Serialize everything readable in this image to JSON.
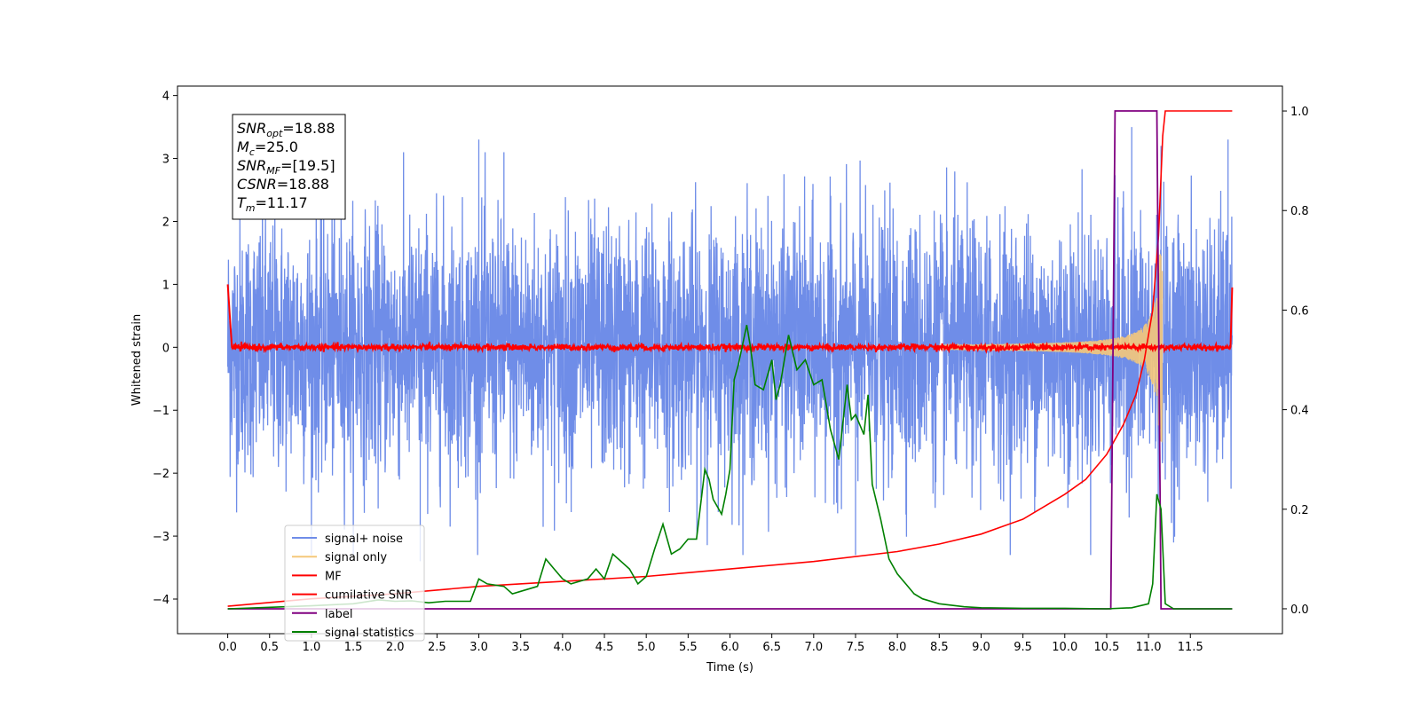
{
  "chart_data": {
    "type": "line",
    "xlabel": "Time (s)",
    "ylabel": "Whitened strain",
    "xlim": [
      -0.6,
      12.6
    ],
    "ylim": [
      -4.55,
      4.15
    ],
    "ylim_right": [
      -0.05,
      1.05
    ],
    "x_ticks": [
      0.0,
      0.5,
      1.0,
      1.5,
      2.0,
      2.5,
      3.0,
      3.5,
      4.0,
      4.5,
      5.0,
      5.5,
      6.0,
      6.5,
      7.0,
      7.5,
      8.0,
      8.5,
      9.0,
      9.5,
      10.0,
      10.5,
      11.0,
      11.5
    ],
    "x_tick_labels": [
      "0.0",
      "0.5",
      "1.0",
      "1.5",
      "2.0",
      "2.5",
      "3.0",
      "3.5",
      "4.0",
      "4.5",
      "5.0",
      "5.5",
      "6.0",
      "6.5",
      "7.0",
      "7.5",
      "8.0",
      "8.5",
      "9.0",
      "9.5",
      "10.0",
      "10.5",
      "11.0",
      "11.5"
    ],
    "y_ticks": [
      -4,
      -3,
      -2,
      -1,
      0,
      1,
      2,
      3,
      4
    ],
    "y_tick_labels": [
      "−4",
      "−3",
      "−2",
      "−1",
      "0",
      "1",
      "2",
      "3",
      "4"
    ],
    "y_right_ticks": [
      0.0,
      0.2,
      0.4,
      0.6,
      0.8,
      1.0
    ],
    "y_right_tick_labels": [
      "0.0",
      "0.2",
      "0.4",
      "0.6",
      "0.8",
      "1.0"
    ],
    "colors": {
      "signal_noise": "#6f8de8",
      "signal_only": "#f5c87a",
      "mf": "#ff0000",
      "cumulative_snr": "#ff0000",
      "label": "#800080",
      "signal_statistics": "#008000"
    },
    "legend": {
      "placement": "lower-left",
      "entries": [
        {
          "key": "signal_noise",
          "label": "signal+ noise"
        },
        {
          "key": "signal_only",
          "label": "signal only"
        },
        {
          "key": "mf",
          "label": "MF"
        },
        {
          "key": "cumulative_snr",
          "label": "cumilative SNR"
        },
        {
          "key": "label",
          "label": "label"
        },
        {
          "key": "signal_statistics",
          "label": "signal statistics"
        }
      ]
    },
    "info_box": [
      {
        "main": "SNR",
        "sub": "opt",
        "value": "=18.88"
      },
      {
        "main": "M",
        "sub": "c",
        "value": "=25.0"
      },
      {
        "main": "SNR",
        "sub": "MF",
        "value": "=[19.5]"
      },
      {
        "main": "CSNR",
        "sub": "",
        "value": "=18.88"
      },
      {
        "main": "T",
        "sub": "m",
        "value": "=11.17"
      }
    ],
    "series": [
      {
        "name": "signal+ noise",
        "axis": "left",
        "description_x_range": [
          0.0,
          12.0
        ],
        "amplitude_range": [
          -3.5,
          3.5
        ],
        "notable_peaks": [
          [
            3.0,
            3.3
          ],
          [
            3.3,
            3.1
          ],
          [
            10.8,
            3.5
          ],
          [
            11.15,
            3.2
          ],
          [
            11.95,
            3.3
          ],
          [
            2.3,
            -3.4
          ],
          [
            7.5,
            -3.3
          ],
          [
            11.3,
            -3.1
          ]
        ]
      },
      {
        "name": "signal only",
        "axis": "left",
        "chirp_start": 9.5,
        "chirp_end": 11.17,
        "peak_amplitude": 1.5
      },
      {
        "name": "MF",
        "axis": "left",
        "x_range": [
          0.0,
          12.0
        ],
        "start_value": 1.0,
        "baseline_noise": 0.05,
        "end_value": 0.95
      },
      {
        "name": "cumilative SNR",
        "axis": "right",
        "x": [
          0.0,
          1.0,
          2.0,
          3.0,
          4.0,
          5.0,
          6.0,
          7.0,
          8.0,
          8.5,
          9.0,
          9.5,
          10.0,
          10.25,
          10.5,
          10.7,
          10.85,
          10.95,
          11.05,
          11.12,
          11.17,
          11.2,
          12.0
        ],
        "y": [
          0.005,
          0.02,
          0.03,
          0.045,
          0.055,
          0.065,
          0.08,
          0.095,
          0.115,
          0.13,
          0.15,
          0.18,
          0.23,
          0.26,
          0.31,
          0.37,
          0.43,
          0.5,
          0.6,
          0.75,
          0.95,
          1.0,
          1.0
        ]
      },
      {
        "name": "label",
        "axis": "right",
        "x": [
          0.0,
          10.55,
          10.6,
          11.1,
          11.15,
          12.0
        ],
        "y": [
          0.0,
          0.0,
          1.0,
          1.0,
          0.0,
          0.0
        ]
      },
      {
        "name": "signal statistics",
        "axis": "right",
        "x": [
          0.0,
          0.5,
          1.0,
          1.5,
          1.8,
          2.0,
          2.2,
          2.4,
          2.6,
          2.9,
          3.0,
          3.1,
          3.3,
          3.4,
          3.5,
          3.7,
          3.8,
          3.9,
          4.0,
          4.1,
          4.3,
          4.4,
          4.5,
          4.6,
          4.8,
          4.9,
          5.0,
          5.1,
          5.2,
          5.3,
          5.4,
          5.5,
          5.6,
          5.7,
          5.75,
          5.8,
          5.9,
          5.95,
          6.0,
          6.05,
          6.1,
          6.2,
          6.25,
          6.3,
          6.4,
          6.5,
          6.55,
          6.6,
          6.7,
          6.8,
          6.9,
          7.0,
          7.1,
          7.2,
          7.3,
          7.4,
          7.45,
          7.5,
          7.6,
          7.65,
          7.7,
          7.8,
          7.9,
          8.0,
          8.1,
          8.2,
          8.3,
          8.5,
          8.7,
          8.8,
          9.0,
          9.5,
          10.0,
          10.5,
          10.8,
          11.0,
          11.05,
          11.1,
          11.15,
          11.2,
          11.3,
          12.0
        ],
        "y": [
          0.0,
          0.003,
          0.006,
          0.01,
          0.018,
          0.015,
          0.016,
          0.012,
          0.015,
          0.015,
          0.06,
          0.05,
          0.045,
          0.03,
          0.035,
          0.045,
          0.1,
          0.08,
          0.06,
          0.05,
          0.06,
          0.08,
          0.06,
          0.11,
          0.08,
          0.05,
          0.065,
          0.12,
          0.17,
          0.11,
          0.12,
          0.14,
          0.14,
          0.28,
          0.26,
          0.22,
          0.19,
          0.23,
          0.28,
          0.46,
          0.49,
          0.57,
          0.52,
          0.45,
          0.44,
          0.5,
          0.42,
          0.45,
          0.55,
          0.48,
          0.5,
          0.45,
          0.46,
          0.36,
          0.3,
          0.45,
          0.38,
          0.39,
          0.35,
          0.43,
          0.25,
          0.18,
          0.1,
          0.07,
          0.05,
          0.03,
          0.02,
          0.01,
          0.006,
          0.004,
          0.002,
          0.001,
          0.001,
          0.0,
          0.002,
          0.01,
          0.05,
          0.23,
          0.2,
          0.01,
          0.0,
          0.0
        ]
      }
    ]
  }
}
